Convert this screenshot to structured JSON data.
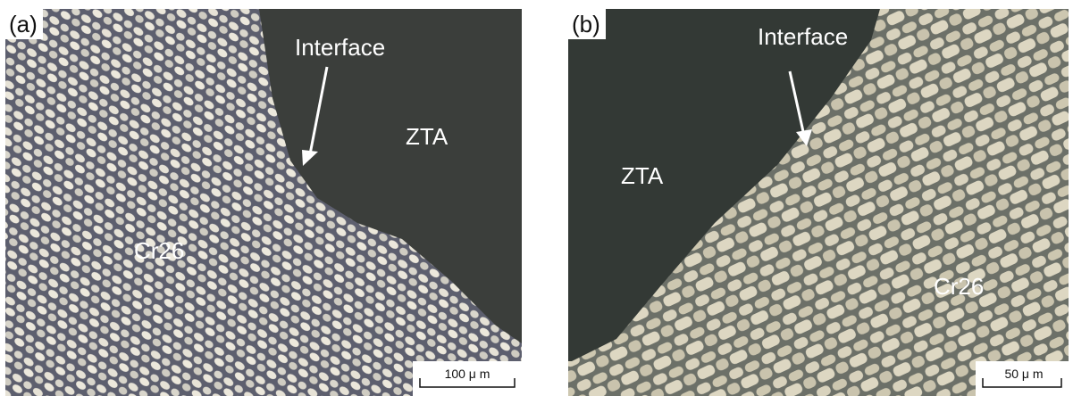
{
  "panels": [
    {
      "label": "(a)",
      "interface": "Interface",
      "zta": "ZTA",
      "alloy": "Cr26",
      "scale_bar": "100 μ m"
    },
    {
      "label": "(b)",
      "interface": "Interface",
      "zta": "ZTA",
      "alloy": "Cr26",
      "scale_bar": "50 μ m"
    }
  ]
}
